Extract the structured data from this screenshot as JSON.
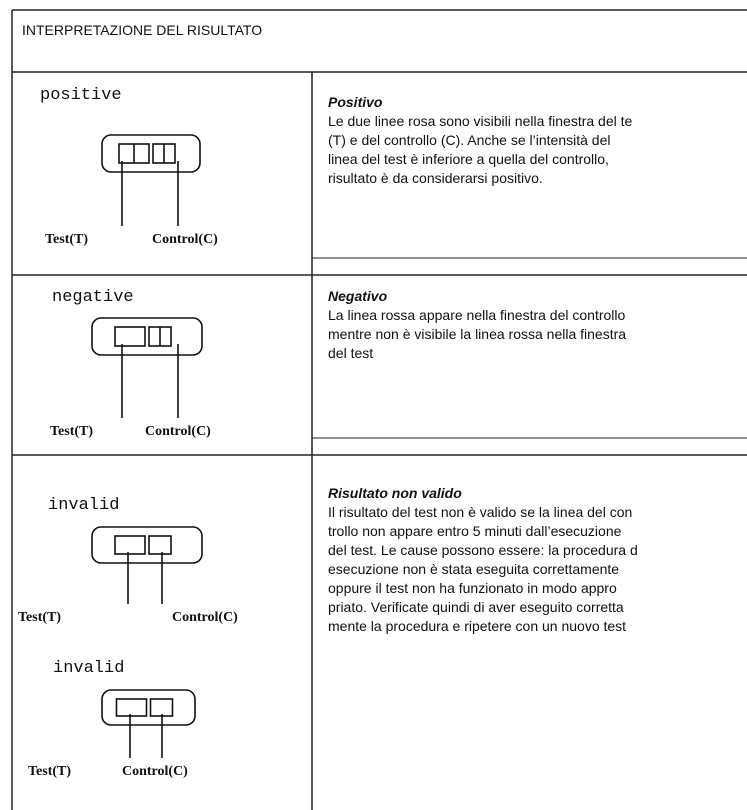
{
  "header": {
    "title": "INTERPRETAZIONE DEL RISULTATO"
  },
  "rows": [
    {
      "diagrams": [
        {
          "label": "positive",
          "test": "Test(T)",
          "control": "Control(C)"
        }
      ],
      "heading": "Positivo",
      "lines": [
        "Le due linee rosa sono visibili nella finestra del te",
        "(T) e del controllo (C). Anche se l’intensità del",
        "linea del test è inferiore a quella del controllo,",
        "risultato è da considerarsi positivo."
      ]
    },
    {
      "diagrams": [
        {
          "label": "negative",
          "test": "Test(T)",
          "control": "Control(C)"
        }
      ],
      "heading": "Negativo",
      "lines": [
        "La linea rossa appare nella finestra del controllo",
        "mentre non è visibile la linea rossa nella finestra",
        "del test"
      ]
    },
    {
      "diagrams": [
        {
          "label": "invalid",
          "test": "Test(T)",
          "control": "Control(C)"
        },
        {
          "label": "invalid",
          "test": "Test(T)",
          "control": "Control(C)"
        }
      ],
      "heading": "Risultato non valido",
      "lines": [
        "Il risultato del test non è valido se la linea del con",
        "trollo non appare entro 5 minuti dall’esecuzione",
        "del test. Le cause possono essere: la procedura d",
        "esecuzione non è stata eseguita correttamente",
        "oppure il test non ha funzionato in modo appro",
        "priato. Verificate quindi di aver eseguito corretta",
        "mente la procedura e ripetere con un nuovo test"
      ]
    }
  ]
}
